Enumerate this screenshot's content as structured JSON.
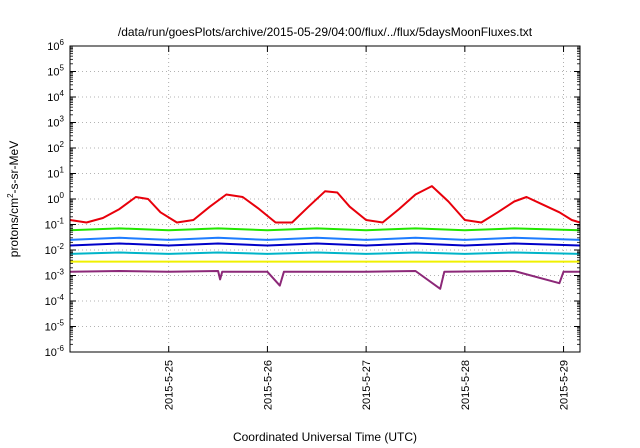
{
  "chart_data": {
    "type": "line",
    "title": "/data/run/goesPlots/archive/2015-05-29/04:00/flux/../flux/5daysMoonFluxes.txt",
    "xlabel": "Coordinated Universal Time (UTC)",
    "ylabel": "protons/cm²-s-sr-MeV",
    "ylabel_main": "protons/cm",
    "ylabel_sup": "2",
    "ylabel_rest": "-s-sr-MeV",
    "y_scale": "log",
    "ylim": [
      1e-06,
      1000000.0
    ],
    "y_ticks": [
      {
        "value": 1e-06,
        "exp": "-6"
      },
      {
        "value": 1e-05,
        "exp": "-5"
      },
      {
        "value": 0.0001,
        "exp": "-4"
      },
      {
        "value": 0.001,
        "exp": "-3"
      },
      {
        "value": 0.01,
        "exp": "-2"
      },
      {
        "value": 0.1,
        "exp": "-1"
      },
      {
        "value": 1,
        "exp": "0"
      },
      {
        "value": 10,
        "exp": "1"
      },
      {
        "value": 100,
        "exp": "2"
      },
      {
        "value": 1000,
        "exp": "3"
      },
      {
        "value": 10000,
        "exp": "4"
      },
      {
        "value": 100000,
        "exp": "5"
      },
      {
        "value": 1000000,
        "exp": "6"
      }
    ],
    "y_tick_base": "10",
    "xlim": [
      "2015-05-24 00:00",
      "2015-05-29 04:00"
    ],
    "x_ticks": [
      "2015-5-25",
      "2015-5-26",
      "2015-5-27",
      "2015-5-28",
      "2015-5-29"
    ],
    "grid": true,
    "series": [
      {
        "color": "#e8000b",
        "values": [
          [
            "2015-05-24 00:00",
            0.15
          ],
          [
            "2015-05-24 04:00",
            0.12
          ],
          [
            "2015-05-24 08:00",
            0.18
          ],
          [
            "2015-05-24 12:00",
            0.4
          ],
          [
            "2015-05-24 16:00",
            1.2
          ],
          [
            "2015-05-24 19:00",
            1.0
          ],
          [
            "2015-05-24 22:00",
            0.3
          ],
          [
            "2015-05-25 02:00",
            0.12
          ],
          [
            "2015-05-25 06:00",
            0.15
          ],
          [
            "2015-05-25 10:00",
            0.5
          ],
          [
            "2015-05-25 14:00",
            1.5
          ],
          [
            "2015-05-25 18:00",
            1.2
          ],
          [
            "2015-05-25 22:00",
            0.4
          ],
          [
            "2015-05-26 02:00",
            0.12
          ],
          [
            "2015-05-26 06:00",
            0.12
          ],
          [
            "2015-05-26 10:00",
            0.5
          ],
          [
            "2015-05-26 14:00",
            2.0
          ],
          [
            "2015-05-26 17:00",
            1.8
          ],
          [
            "2015-05-26 20:00",
            0.5
          ],
          [
            "2015-05-27 00:00",
            0.15
          ],
          [
            "2015-05-27 04:00",
            0.12
          ],
          [
            "2015-05-27 08:00",
            0.4
          ],
          [
            "2015-05-27 12:00",
            1.5
          ],
          [
            "2015-05-27 16:00",
            3.2
          ],
          [
            "2015-05-27 20:00",
            0.8
          ],
          [
            "2015-05-28 00:00",
            0.15
          ],
          [
            "2015-05-28 04:00",
            0.12
          ],
          [
            "2015-05-28 08:00",
            0.3
          ],
          [
            "2015-05-28 12:00",
            0.8
          ],
          [
            "2015-05-28 15:00",
            1.2
          ],
          [
            "2015-05-28 19:00",
            0.6
          ],
          [
            "2015-05-28 23:00",
            0.3
          ],
          [
            "2015-05-29 02:00",
            0.15
          ],
          [
            "2015-05-29 04:00",
            0.12
          ]
        ]
      },
      {
        "color": "#22e600",
        "values": [
          [
            "2015-05-24 00:00",
            0.06
          ],
          [
            "2015-05-24 12:00",
            0.07
          ],
          [
            "2015-05-25 00:00",
            0.06
          ],
          [
            "2015-05-25 12:00",
            0.07
          ],
          [
            "2015-05-26 00:00",
            0.06
          ],
          [
            "2015-05-26 12:00",
            0.07
          ],
          [
            "2015-05-27 00:00",
            0.06
          ],
          [
            "2015-05-27 12:00",
            0.07
          ],
          [
            "2015-05-28 00:00",
            0.06
          ],
          [
            "2015-05-28 12:00",
            0.07
          ],
          [
            "2015-05-29 04:00",
            0.06
          ]
        ]
      },
      {
        "color": "#1e7cff",
        "values": [
          [
            "2015-05-24 00:00",
            0.025
          ],
          [
            "2015-05-24 12:00",
            0.03
          ],
          [
            "2015-05-25 00:00",
            0.025
          ],
          [
            "2015-05-25 12:00",
            0.03
          ],
          [
            "2015-05-26 00:00",
            0.025
          ],
          [
            "2015-05-26 12:00",
            0.03
          ],
          [
            "2015-05-27 00:00",
            0.025
          ],
          [
            "2015-05-27 12:00",
            0.03
          ],
          [
            "2015-05-28 00:00",
            0.025
          ],
          [
            "2015-05-28 12:00",
            0.03
          ],
          [
            "2015-05-29 04:00",
            0.025
          ]
        ]
      },
      {
        "color": "#0000c8",
        "values": [
          [
            "2015-05-24 00:00",
            0.015
          ],
          [
            "2015-05-24 12:00",
            0.018
          ],
          [
            "2015-05-25 00:00",
            0.015
          ],
          [
            "2015-05-25 12:00",
            0.018
          ],
          [
            "2015-05-26 00:00",
            0.015
          ],
          [
            "2015-05-26 12:00",
            0.018
          ],
          [
            "2015-05-27 00:00",
            0.015
          ],
          [
            "2015-05-27 12:00",
            0.018
          ],
          [
            "2015-05-28 00:00",
            0.015
          ],
          [
            "2015-05-28 12:00",
            0.018
          ],
          [
            "2015-05-29 04:00",
            0.015
          ]
        ]
      },
      {
        "color": "#00b4c8",
        "values": [
          [
            "2015-05-24 00:00",
            0.007
          ],
          [
            "2015-05-24 12:00",
            0.008
          ],
          [
            "2015-05-25 00:00",
            0.007
          ],
          [
            "2015-05-25 12:00",
            0.008
          ],
          [
            "2015-05-26 00:00",
            0.007
          ],
          [
            "2015-05-26 12:00",
            0.008
          ],
          [
            "2015-05-27 00:00",
            0.007
          ],
          [
            "2015-05-27 12:00",
            0.008
          ],
          [
            "2015-05-28 00:00",
            0.007
          ],
          [
            "2015-05-28 12:00",
            0.008
          ],
          [
            "2015-05-29 04:00",
            0.007
          ]
        ]
      },
      {
        "color": "#f0f000",
        "values": [
          [
            "2015-05-24 00:00",
            0.0035
          ],
          [
            "2015-05-24 12:00",
            0.0035
          ],
          [
            "2015-05-25 00:00",
            0.0035
          ],
          [
            "2015-05-25 12:00",
            0.0035
          ],
          [
            "2015-05-26 00:00",
            0.0035
          ],
          [
            "2015-05-26 12:00",
            0.0035
          ],
          [
            "2015-05-27 00:00",
            0.0035
          ],
          [
            "2015-05-27 12:00",
            0.0035
          ],
          [
            "2015-05-28 00:00",
            0.0035
          ],
          [
            "2015-05-28 12:00",
            0.0035
          ],
          [
            "2015-05-29 04:00",
            0.0035
          ]
        ]
      },
      {
        "color": "#8c2878",
        "values": [
          [
            "2015-05-24 00:00",
            0.0014
          ],
          [
            "2015-05-24 12:00",
            0.0015
          ],
          [
            "2015-05-25 00:00",
            0.0014
          ],
          [
            "2015-05-25 12:00",
            0.0015
          ],
          [
            "2015-05-25 12:30",
            0.0007
          ],
          [
            "2015-05-25 13:00",
            0.0014
          ],
          [
            "2015-05-26 00:00",
            0.0014
          ],
          [
            "2015-05-26 03:00",
            0.0004
          ],
          [
            "2015-05-26 04:00",
            0.0014
          ],
          [
            "2015-05-27 00:00",
            0.0014
          ],
          [
            "2015-05-27 12:00",
            0.0015
          ],
          [
            "2015-05-27 18:00",
            0.0003
          ],
          [
            "2015-05-27 19:00",
            0.0014
          ],
          [
            "2015-05-28 12:00",
            0.0015
          ],
          [
            "2015-05-28 23:00",
            0.0005
          ],
          [
            "2015-05-29 00:00",
            0.0014
          ],
          [
            "2015-05-29 04:00",
            0.0014
          ]
        ]
      }
    ]
  }
}
